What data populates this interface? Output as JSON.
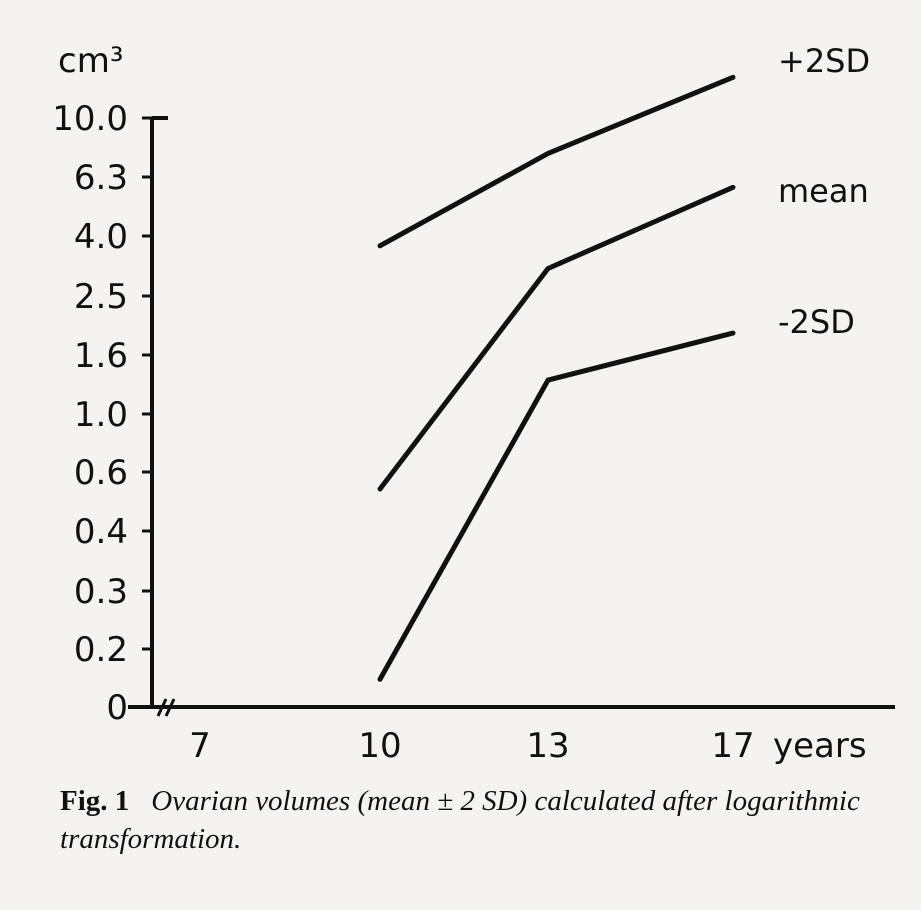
{
  "chart_data": {
    "type": "line",
    "ylabel": "cm³",
    "xlabel": "years",
    "x": [
      7,
      10,
      13,
      17
    ],
    "x_tick_labels": [
      "7",
      "10",
      "13",
      "17"
    ],
    "y_tick_labels": [
      "0",
      "0.2",
      "0.3",
      "0.4",
      "0.6",
      "1.0",
      "1.6",
      "2.5",
      "4.0",
      "6.3",
      "10.0"
    ],
    "y_scale": "log (0 at origin, axis break)",
    "ylim": [
      0,
      10.0
    ],
    "series": [
      {
        "name": "+2SD",
        "x": [
          10,
          13,
          17
        ],
        "values": [
          3.9,
          7.7,
          13.5
        ]
      },
      {
        "name": "mean",
        "x": [
          10,
          13,
          17
        ],
        "values": [
          0.65,
          3.3,
          6.0
        ]
      },
      {
        "name": "-2SD",
        "x": [
          10,
          13,
          17
        ],
        "values": [
          0.16,
          1.45,
          2.05
        ]
      }
    ],
    "legend_placement": "right, inline at line ends",
    "grid": false
  },
  "caption": {
    "figure_number": "Fig. 1",
    "text": "Ovarian volumes (mean ± 2 SD) calculated after logarithmic transformation."
  }
}
